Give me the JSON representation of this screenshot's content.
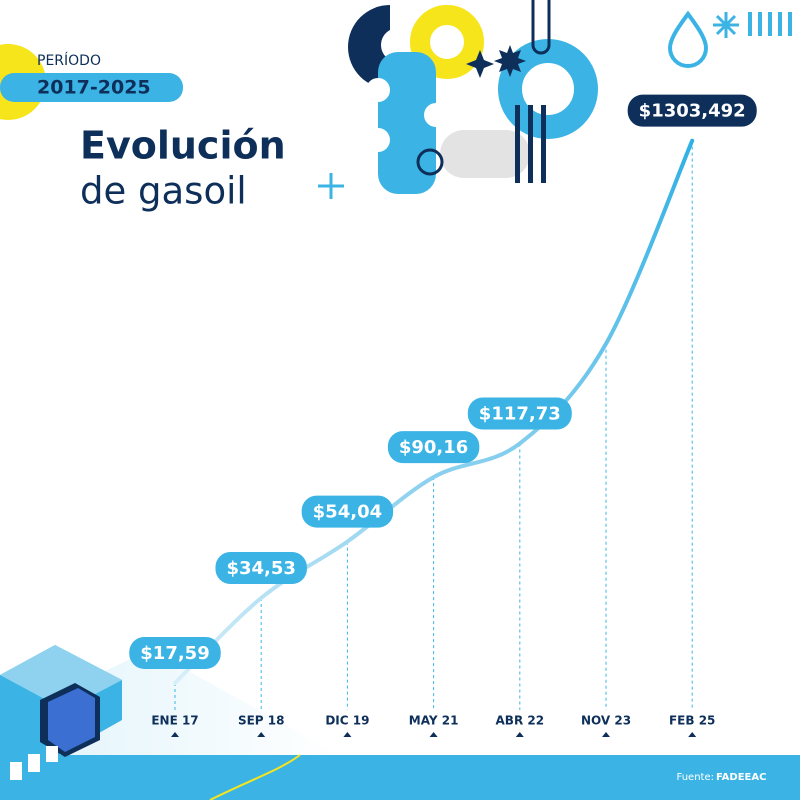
{
  "chart_data": {
    "type": "line",
    "period_label": "PERÍODO",
    "period": "2017-2025",
    "title_line1": "Evolución",
    "title_line2": "de gasoil",
    "categories": [
      "ENE 17",
      "SEP 18",
      "DIC 19",
      "MAY 21",
      "ABR 22",
      "NOV 23",
      "FEB 25"
    ],
    "values": [
      17.59,
      34.53,
      54.04,
      90.16,
      117.73,
      260,
      1303.492
    ],
    "value_labels": [
      "$17,59",
      "$34,53",
      "$54,04",
      "$90,16",
      "$117,73",
      null,
      "$1303,492"
    ],
    "color": "#3bb4e5",
    "highlight_color": "#0d2f5a",
    "log_scale": true,
    "ylim": [
      15,
      1500
    ],
    "source_label": "Fuente:",
    "source": "FADEEAC"
  }
}
